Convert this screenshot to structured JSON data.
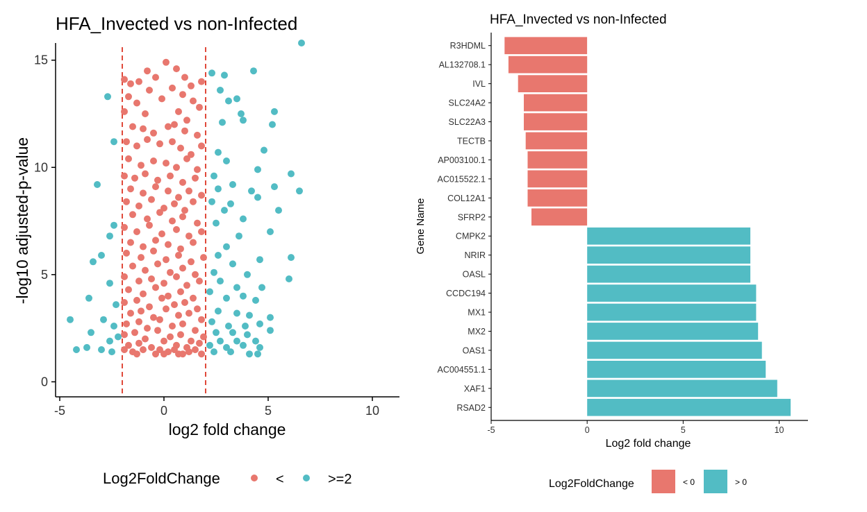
{
  "colors": {
    "negative": "#E8776E",
    "positive": "#52BCC4",
    "threshold_line": "#E0493A"
  },
  "chart_data": [
    {
      "type": "scatter",
      "title": "HFA_Invected vs non-Infected",
      "xlabel": "log2 fold change",
      "ylabel": "-log10 adjusted-p-value",
      "xlim": [
        -5.2,
        11.3
      ],
      "ylim": [
        -0.7,
        15.8
      ],
      "xticks": [
        -5,
        0,
        5,
        10
      ],
      "yticks": [
        0,
        5,
        10,
        15
      ],
      "vlines": [
        -2,
        2
      ],
      "grid": false,
      "legend": {
        "title": "Log2FoldChange",
        "position": "bottom",
        "entries": [
          "<",
          ">=2"
        ]
      },
      "series": [
        {
          "name": "<",
          "points": [
            [
              -1.9,
              14.1
            ],
            [
              -1.6,
              13.9
            ],
            [
              -1.2,
              14.0
            ],
            [
              -0.8,
              14.5
            ],
            [
              -0.4,
              14.2
            ],
            [
              0.1,
              14.9
            ],
            [
              0.6,
              14.6
            ],
            [
              1.0,
              14.2
            ],
            [
              1.3,
              13.8
            ],
            [
              1.8,
              14.0
            ],
            [
              -1.7,
              13.3
            ],
            [
              -1.3,
              13.0
            ],
            [
              -0.7,
              13.6
            ],
            [
              -0.1,
              13.2
            ],
            [
              0.4,
              13.7
            ],
            [
              0.9,
              13.4
            ],
            [
              1.4,
              13.1
            ],
            [
              1.7,
              12.8
            ],
            [
              -1.9,
              12.6
            ],
            [
              -0.9,
              12.5
            ],
            [
              0.7,
              12.6
            ],
            [
              1.1,
              12.2
            ],
            [
              -1.5,
              11.9
            ],
            [
              -1.0,
              11.8
            ],
            [
              -0.5,
              11.6
            ],
            [
              0.2,
              11.9
            ],
            [
              0.5,
              12.0
            ],
            [
              1.0,
              11.7
            ],
            [
              1.6,
              11.5
            ],
            [
              -1.8,
              11.2
            ],
            [
              -1.3,
              11.0
            ],
            [
              -0.8,
              11.3
            ],
            [
              -0.2,
              11.1
            ],
            [
              0.4,
              11.2
            ],
            [
              0.8,
              10.9
            ],
            [
              1.3,
              10.6
            ],
            [
              1.8,
              11.0
            ],
            [
              -1.7,
              10.4
            ],
            [
              -1.1,
              10.1
            ],
            [
              -0.5,
              10.3
            ],
            [
              0.1,
              10.2
            ],
            [
              0.6,
              10.0
            ],
            [
              1.1,
              10.4
            ],
            [
              1.6,
              9.9
            ],
            [
              -1.9,
              9.6
            ],
            [
              -1.4,
              9.5
            ],
            [
              -0.9,
              9.7
            ],
            [
              -0.3,
              9.4
            ],
            [
              0.3,
              9.6
            ],
            [
              0.9,
              9.3
            ],
            [
              1.5,
              9.5
            ],
            [
              -1.6,
              9.0
            ],
            [
              -1.0,
              8.8
            ],
            [
              -0.4,
              9.1
            ],
            [
              0.2,
              8.9
            ],
            [
              0.7,
              8.6
            ],
            [
              1.2,
              8.9
            ],
            [
              1.8,
              8.7
            ],
            [
              -1.8,
              8.4
            ],
            [
              -1.2,
              8.2
            ],
            [
              -0.6,
              8.5
            ],
            [
              0.0,
              8.1
            ],
            [
              0.5,
              8.3
            ],
            [
              1.0,
              8.0
            ],
            [
              1.4,
              8.4
            ],
            [
              -1.5,
              7.8
            ],
            [
              -0.8,
              7.6
            ],
            [
              -0.2,
              7.9
            ],
            [
              0.4,
              7.5
            ],
            [
              0.9,
              7.7
            ],
            [
              1.6,
              7.4
            ],
            [
              -1.9,
              7.2
            ],
            [
              -1.3,
              7.0
            ],
            [
              -0.7,
              7.3
            ],
            [
              -0.1,
              6.9
            ],
            [
              0.6,
              7.1
            ],
            [
              1.2,
              6.8
            ],
            [
              1.8,
              7.0
            ],
            [
              -1.6,
              6.5
            ],
            [
              -1.0,
              6.3
            ],
            [
              -0.4,
              6.6
            ],
            [
              0.2,
              6.4
            ],
            [
              0.8,
              6.2
            ],
            [
              1.4,
              6.5
            ],
            [
              -1.8,
              6.0
            ],
            [
              -1.1,
              5.8
            ],
            [
              -0.5,
              6.1
            ],
            [
              0.1,
              5.7
            ],
            [
              0.7,
              5.9
            ],
            [
              1.3,
              5.6
            ],
            [
              1.9,
              5.8
            ],
            [
              -1.5,
              5.4
            ],
            [
              -0.9,
              5.2
            ],
            [
              -0.3,
              5.5
            ],
            [
              0.3,
              5.1
            ],
            [
              0.9,
              5.3
            ],
            [
              1.5,
              5.0
            ],
            [
              -1.9,
              4.9
            ],
            [
              -1.2,
              4.7
            ],
            [
              -0.6,
              4.8
            ],
            [
              0.0,
              4.6
            ],
            [
              0.6,
              4.9
            ],
            [
              1.1,
              4.5
            ],
            [
              1.7,
              4.7
            ],
            [
              -1.7,
              4.3
            ],
            [
              -1.0,
              4.1
            ],
            [
              -0.4,
              4.4
            ],
            [
              0.2,
              4.0
            ],
            [
              0.8,
              4.2
            ],
            [
              1.4,
              3.9
            ],
            [
              -1.9,
              3.7
            ],
            [
              -1.3,
              3.8
            ],
            [
              -0.7,
              3.5
            ],
            [
              -0.1,
              3.9
            ],
            [
              0.5,
              3.6
            ],
            [
              1.0,
              3.7
            ],
            [
              1.6,
              3.4
            ],
            [
              -1.6,
              3.2
            ],
            [
              -1.1,
              3.3
            ],
            [
              -0.5,
              3.0
            ],
            [
              0.1,
              3.4
            ],
            [
              0.7,
              3.1
            ],
            [
              1.2,
              3.2
            ],
            [
              1.8,
              2.9
            ],
            [
              -1.8,
              2.7
            ],
            [
              -1.2,
              2.8
            ],
            [
              -0.8,
              2.5
            ],
            [
              -0.2,
              2.9
            ],
            [
              0.4,
              2.6
            ],
            [
              0.9,
              2.7
            ],
            [
              1.5,
              2.4
            ],
            [
              -1.9,
              2.2
            ],
            [
              -1.4,
              2.3
            ],
            [
              -0.9,
              2.0
            ],
            [
              -0.3,
              2.4
            ],
            [
              0.3,
              2.1
            ],
            [
              0.8,
              2.2
            ],
            [
              1.3,
              1.9
            ],
            [
              1.9,
              2.1
            ],
            [
              -1.7,
              1.7
            ],
            [
              -1.2,
              1.8
            ],
            [
              -0.6,
              1.6
            ],
            [
              0.0,
              1.9
            ],
            [
              0.6,
              1.7
            ],
            [
              1.1,
              1.6
            ],
            [
              1.7,
              1.8
            ],
            [
              -1.5,
              1.4
            ],
            [
              -1.0,
              1.5
            ],
            [
              -0.4,
              1.3
            ],
            [
              0.2,
              1.4
            ],
            [
              0.7,
              1.3
            ],
            [
              1.2,
              1.4
            ],
            [
              1.8,
              1.3
            ],
            [
              -1.9,
              1.5
            ],
            [
              -0.2,
              1.5
            ],
            [
              0.5,
              1.5
            ],
            [
              1.5,
              1.5
            ],
            [
              -1.3,
              1.3
            ],
            [
              0.0,
              1.3
            ],
            [
              0.9,
              1.3
            ]
          ]
        },
        {
          "name": ">=2",
          "points": [
            [
              6.6,
              15.8
            ],
            [
              2.3,
              14.4
            ],
            [
              2.9,
              14.3
            ],
            [
              4.3,
              14.5
            ],
            [
              2.7,
              13.6
            ],
            [
              3.1,
              13.1
            ],
            [
              3.5,
              13.2
            ],
            [
              3.7,
              12.5
            ],
            [
              -2.7,
              13.3
            ],
            [
              5.3,
              12.6
            ],
            [
              2.8,
              12.1
            ],
            [
              3.8,
              12.2
            ],
            [
              5.2,
              12.0
            ],
            [
              -2.4,
              11.2
            ],
            [
              2.6,
              10.7
            ],
            [
              4.8,
              10.8
            ],
            [
              3.0,
              10.3
            ],
            [
              4.5,
              9.9
            ],
            [
              2.4,
              9.6
            ],
            [
              6.1,
              9.7
            ],
            [
              -3.2,
              9.2
            ],
            [
              3.3,
              9.2
            ],
            [
              5.3,
              9.1
            ],
            [
              2.6,
              9.0
            ],
            [
              6.5,
              8.9
            ],
            [
              4.2,
              8.9
            ],
            [
              2.3,
              8.4
            ],
            [
              3.2,
              8.3
            ],
            [
              4.5,
              8.6
            ],
            [
              2.9,
              8.0
            ],
            [
              5.5,
              8.0
            ],
            [
              3.8,
              7.6
            ],
            [
              2.5,
              7.4
            ],
            [
              3.6,
              6.8
            ],
            [
              -2.4,
              7.3
            ],
            [
              -2.6,
              6.8
            ],
            [
              3.0,
              6.3
            ],
            [
              5.1,
              7.0
            ],
            [
              2.6,
              5.9
            ],
            [
              4.6,
              5.7
            ],
            [
              6.1,
              5.8
            ],
            [
              -3.0,
              5.9
            ],
            [
              3.3,
              5.5
            ],
            [
              2.4,
              5.1
            ],
            [
              4.0,
              5.0
            ],
            [
              -3.4,
              5.6
            ],
            [
              2.7,
              4.7
            ],
            [
              3.5,
              4.4
            ],
            [
              -2.6,
              4.6
            ],
            [
              4.7,
              4.4
            ],
            [
              6.0,
              4.8
            ],
            [
              2.2,
              4.2
            ],
            [
              3.0,
              3.9
            ],
            [
              3.8,
              4.0
            ],
            [
              4.4,
              3.8
            ],
            [
              -3.6,
              3.9
            ],
            [
              -2.3,
              3.6
            ],
            [
              2.6,
              3.3
            ],
            [
              3.5,
              3.2
            ],
            [
              4.1,
              3.1
            ],
            [
              5.1,
              3.0
            ],
            [
              -2.9,
              2.9
            ],
            [
              2.3,
              2.8
            ],
            [
              3.1,
              2.6
            ],
            [
              3.9,
              2.6
            ],
            [
              4.6,
              2.7
            ],
            [
              -4.5,
              2.9
            ],
            [
              -2.4,
              2.6
            ],
            [
              2.5,
              2.3
            ],
            [
              3.3,
              2.3
            ],
            [
              4.0,
              2.2
            ],
            [
              5.1,
              2.4
            ],
            [
              -3.5,
              2.3
            ],
            [
              -2.2,
              2.1
            ],
            [
              2.7,
              1.9
            ],
            [
              3.5,
              1.9
            ],
            [
              4.4,
              1.9
            ],
            [
              -2.6,
              1.9
            ],
            [
              2.2,
              1.7
            ],
            [
              3.0,
              1.6
            ],
            [
              3.8,
              1.7
            ],
            [
              4.6,
              1.6
            ],
            [
              -4.2,
              1.5
            ],
            [
              -3.7,
              1.6
            ],
            [
              -3.0,
              1.5
            ],
            [
              -2.5,
              1.4
            ],
            [
              2.4,
              1.4
            ],
            [
              3.2,
              1.4
            ],
            [
              4.1,
              1.3
            ],
            [
              4.5,
              1.3
            ]
          ]
        }
      ]
    },
    {
      "type": "bar",
      "orientation": "horizontal",
      "title": "HFA_Invected vs non-Infected",
      "xlabel": "Log2 fold change",
      "ylabel": "Gene Name",
      "xlim": [
        -5,
        11.5
      ],
      "xticks": [
        -5,
        0,
        5,
        10
      ],
      "grid": false,
      "legend": {
        "title": "Log2FoldChange",
        "position": "bottom",
        "entries": [
          "< 0",
          "> 0"
        ]
      },
      "categories": [
        "R3HDML",
        "AL132708.1",
        "IVL",
        "SLC24A2",
        "SLC22A3",
        "TECTB",
        "AP003100.1",
        "AC015522.1",
        "COL12A1",
        "SFRP2",
        "CMPK2",
        "NRIR",
        "OASL",
        "CCDC194",
        "MX1",
        "MX2",
        "OAS1",
        "AC004551.1",
        "XAF1",
        "RSAD2"
      ],
      "values": [
        -4.3,
        -4.1,
        -3.6,
        -3.3,
        -3.3,
        -3.2,
        -3.1,
        -3.1,
        -3.1,
        -2.9,
        8.5,
        8.5,
        8.5,
        8.8,
        8.8,
        8.9,
        9.1,
        9.3,
        9.9,
        10.6
      ]
    }
  ]
}
